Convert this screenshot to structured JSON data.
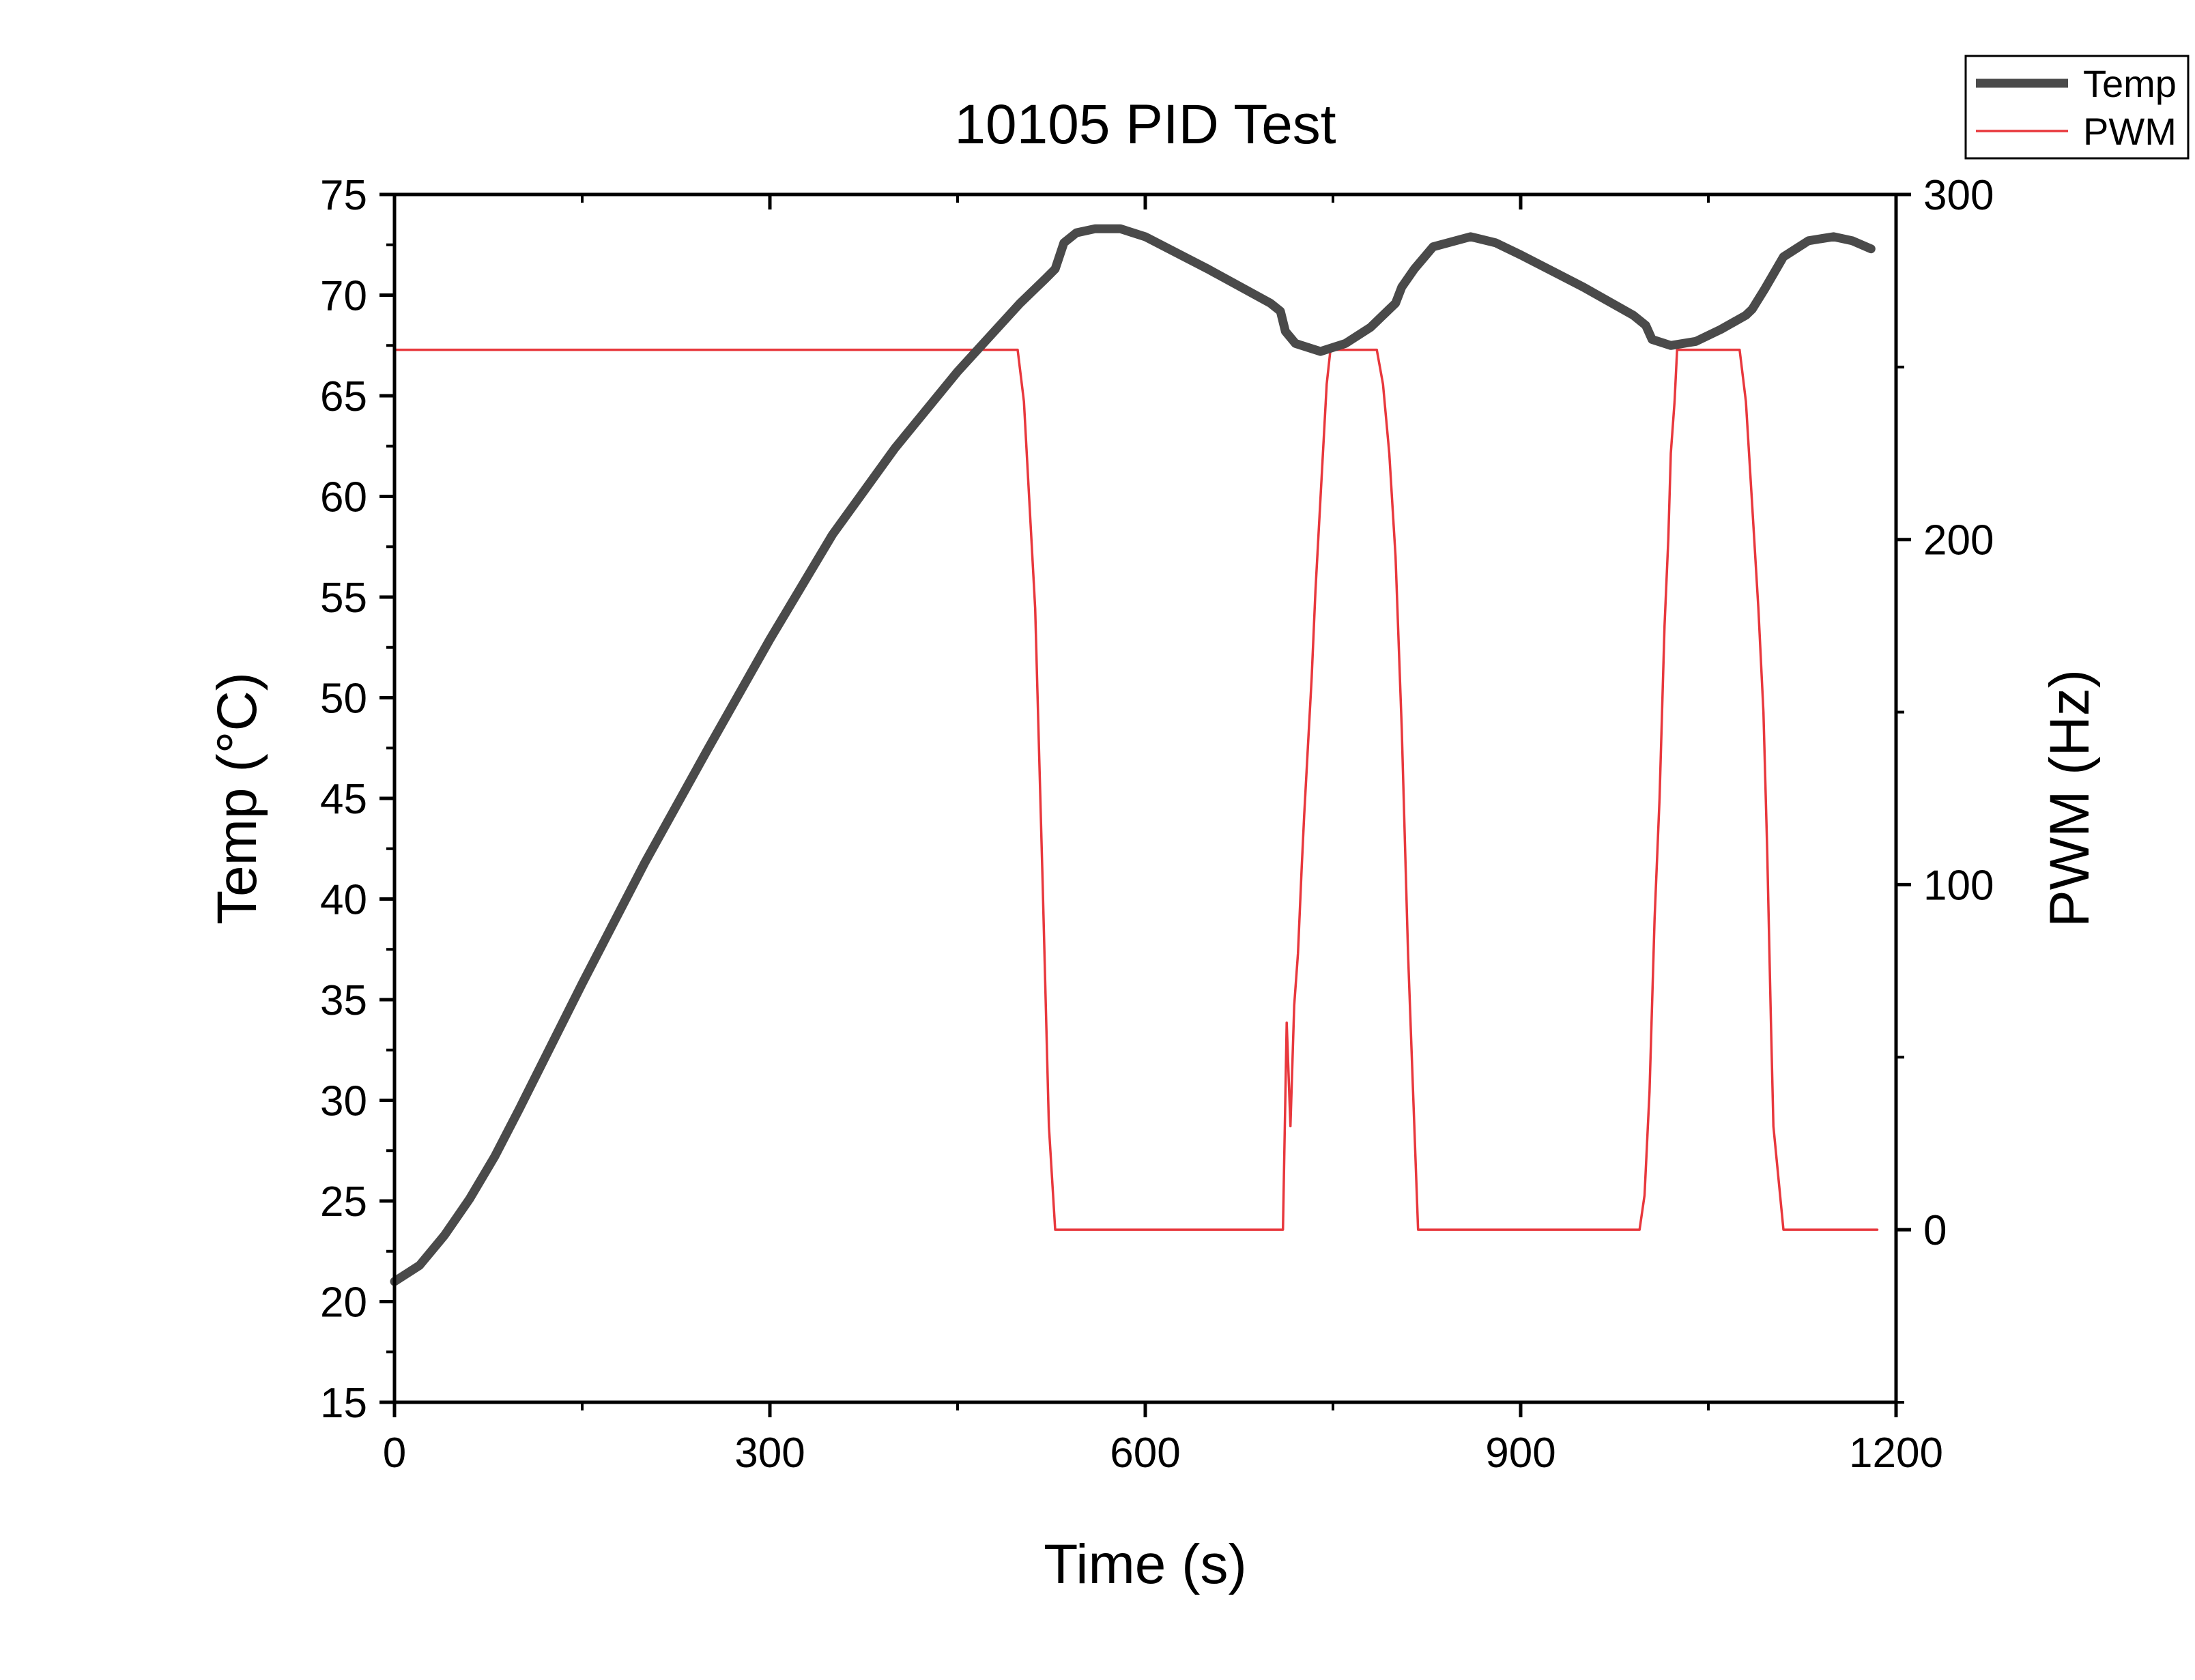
{
  "chart_data": {
    "type": "line",
    "title": "10105 PID Test",
    "xlabel": "Time (s)",
    "ylabel": "Temp (°C)",
    "y2label": "PWM (Hz)",
    "xlim": [
      0,
      1200
    ],
    "ylim": [
      15,
      75
    ],
    "y2lim": [
      -50,
      300
    ],
    "x_ticks": [
      0,
      300,
      600,
      900,
      1200
    ],
    "y_ticks": [
      15,
      20,
      25,
      30,
      35,
      40,
      45,
      50,
      55,
      60,
      65,
      70,
      75
    ],
    "y2_ticks": [
      0,
      100,
      200,
      300
    ],
    "grid": false,
    "legend_position": "top-right, outside plot",
    "colors": {
      "Temp": "#4a4a4a",
      "PWM": "#e8383d"
    },
    "series": [
      {
        "name": "Temp",
        "axis": "left",
        "x": [
          0,
          20,
          40,
          60,
          80,
          100,
          150,
          200,
          250,
          300,
          350,
          400,
          450,
          500,
          520,
          528,
          535,
          545,
          560,
          580,
          600,
          650,
          700,
          708,
          712,
          720,
          740,
          760,
          780,
          800,
          805,
          815,
          830,
          860,
          880,
          900,
          950,
          990,
          1000,
          1005,
          1020,
          1040,
          1060,
          1080,
          1085,
          1095,
          1110,
          1130,
          1150,
          1165,
          1180
        ],
        "y": [
          21,
          21.8,
          23.3,
          25.1,
          27.2,
          29.6,
          35.8,
          41.8,
          47.4,
          52.9,
          58.1,
          62.4,
          66.2,
          69.6,
          70.8,
          71.3,
          72.6,
          73.1,
          73.3,
          73.3,
          72.9,
          71.3,
          69.6,
          69.2,
          68.2,
          67.6,
          67.2,
          67.6,
          68.4,
          69.6,
          70.4,
          71.3,
          72.4,
          72.9,
          72.6,
          72.0,
          70.4,
          69.0,
          68.5,
          67.8,
          67.5,
          67.7,
          68.3,
          69.0,
          69.3,
          70.3,
          71.9,
          72.7,
          72.9,
          72.7,
          72.3
        ]
      },
      {
        "name": "PWM",
        "axis": "right",
        "x": [
          0,
          498,
          503,
          512,
          518,
          523,
          528,
          608,
          710,
          713,
          716,
          719,
          722,
          725,
          727,
          730,
          733,
          736,
          739,
          742,
          745,
          748,
          749,
          785,
          790,
          795,
          800,
          805,
          810,
          818,
          835,
          888,
          995,
          999,
          1003,
          1007,
          1011,
          1015,
          1018,
          1020,
          1023,
          1025,
          1030,
          1075,
          1080,
          1085,
          1090,
          1094,
          1097,
          1100,
          1102,
          1110,
          1185
        ],
        "y": [
          255,
          255,
          240,
          180,
          100,
          30,
          0,
          0,
          0,
          60,
          30,
          65,
          80,
          105,
          120,
          140,
          160,
          185,
          205,
          225,
          245,
          255,
          255,
          255,
          245,
          225,
          195,
          145,
          80,
          0,
          0,
          0,
          0,
          10,
          40,
          90,
          125,
          175,
          200,
          225,
          240,
          255,
          255,
          255,
          240,
          210,
          180,
          150,
          110,
          60,
          30,
          0,
          0
        ]
      }
    ]
  }
}
